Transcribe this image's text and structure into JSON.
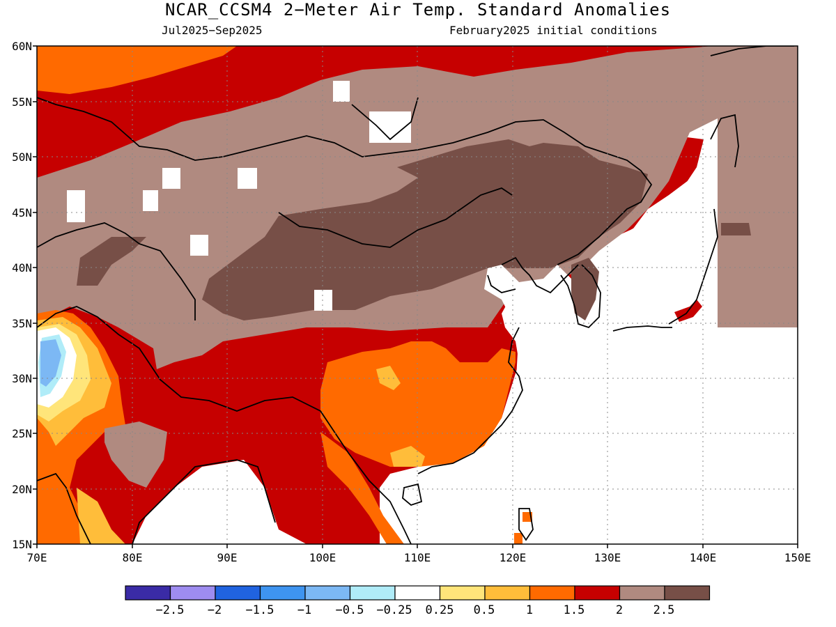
{
  "title": "NCAR_CCSM4 2−Meter Air Temp. Standard Anomalies",
  "subtitle_left": "Jul2025−Sep2025",
  "subtitle_right": "February2025 initial conditions",
  "map": {
    "lat_labels": [
      "60N",
      "55N",
      "50N",
      "45N",
      "40N",
      "35N",
      "30N",
      "25N",
      "20N",
      "15N"
    ],
    "lon_labels": [
      "70E",
      "80E",
      "90E",
      "100E",
      "110E",
      "120E",
      "130E",
      "140E",
      "150E"
    ]
  },
  "colorbar": {
    "colors": [
      "#3a2ba6",
      "#9e8cf0",
      "#2063e0",
      "#3e94f0",
      "#7cb8f4",
      "#b0ecf8",
      "#ffffff",
      "#ffe57a",
      "#ffbd3a",
      "#ff6a00",
      "#c60000",
      "#b08a80",
      "#774f47"
    ],
    "labels": [
      "−2.5",
      "−2",
      "−1.5",
      "−1",
      "−0.5",
      "−0.25",
      "0.25",
      "0.5",
      "1",
      "1.5",
      "2",
      "2.5"
    ]
  }
}
